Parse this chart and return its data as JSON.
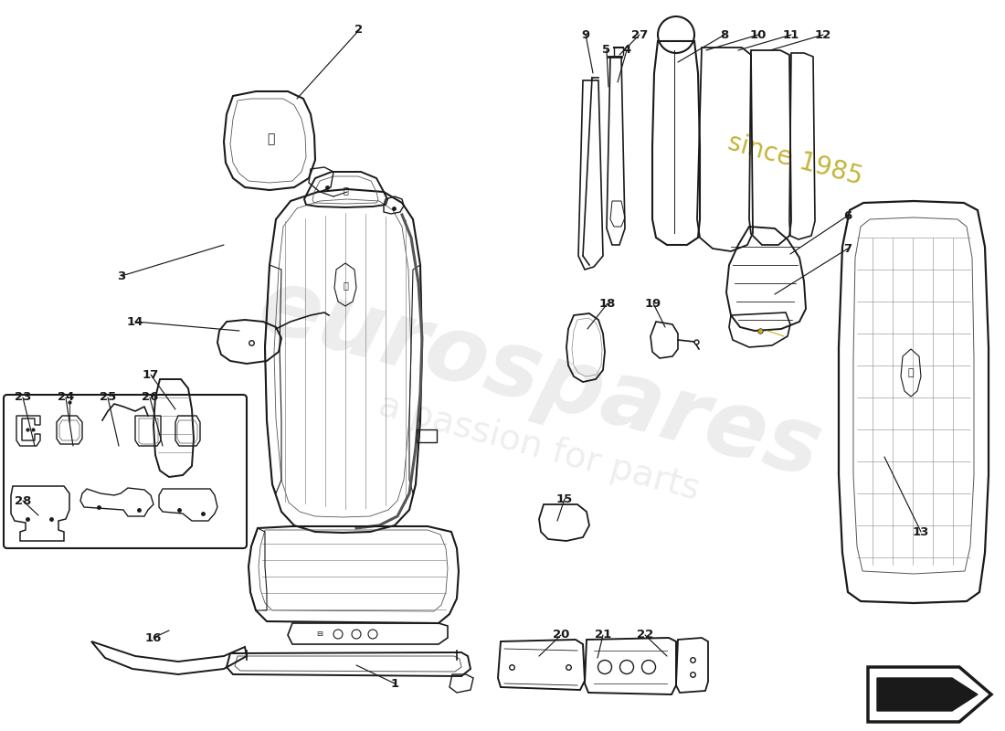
{
  "background_color": "#ffffff",
  "line_color": "#1a1a1a",
  "label_fontsize": 9.5,
  "label_fontweight": "bold",
  "watermark1": "eurospares",
  "watermark2": "a passion for parts",
  "watermark_year": "since 1985",
  "labels": [
    [
      1,
      432,
      748,
      390,
      728
    ],
    [
      2,
      393,
      33,
      325,
      108
    ],
    [
      3,
      133,
      302,
      245,
      268
    ],
    [
      4,
      686,
      55,
      676,
      90
    ],
    [
      5,
      664,
      55,
      666,
      95
    ],
    [
      6,
      928,
      236,
      865,
      278
    ],
    [
      7,
      928,
      272,
      848,
      322
    ],
    [
      8,
      793,
      38,
      742,
      68
    ],
    [
      9,
      641,
      38,
      649,
      80
    ],
    [
      10,
      830,
      38,
      773,
      55
    ],
    [
      11,
      866,
      38,
      808,
      55
    ],
    [
      12,
      901,
      38,
      843,
      55
    ],
    [
      13,
      1008,
      582,
      968,
      500
    ],
    [
      14,
      148,
      352,
      262,
      362
    ],
    [
      15,
      618,
      546,
      610,
      570
    ],
    [
      16,
      168,
      698,
      185,
      690
    ],
    [
      17,
      165,
      410,
      192,
      448
    ],
    [
      18,
      665,
      332,
      643,
      360
    ],
    [
      19,
      715,
      332,
      728,
      358
    ],
    [
      20,
      614,
      695,
      590,
      718
    ],
    [
      21,
      660,
      695,
      654,
      720
    ],
    [
      22,
      706,
      695,
      730,
      718
    ],
    [
      23,
      25,
      435,
      38,
      488
    ],
    [
      24,
      72,
      435,
      80,
      488
    ],
    [
      25,
      118,
      435,
      130,
      488
    ],
    [
      26,
      164,
      435,
      178,
      488
    ],
    [
      27,
      700,
      38,
      678,
      60
    ],
    [
      28,
      25,
      548,
      42,
      564
    ]
  ]
}
